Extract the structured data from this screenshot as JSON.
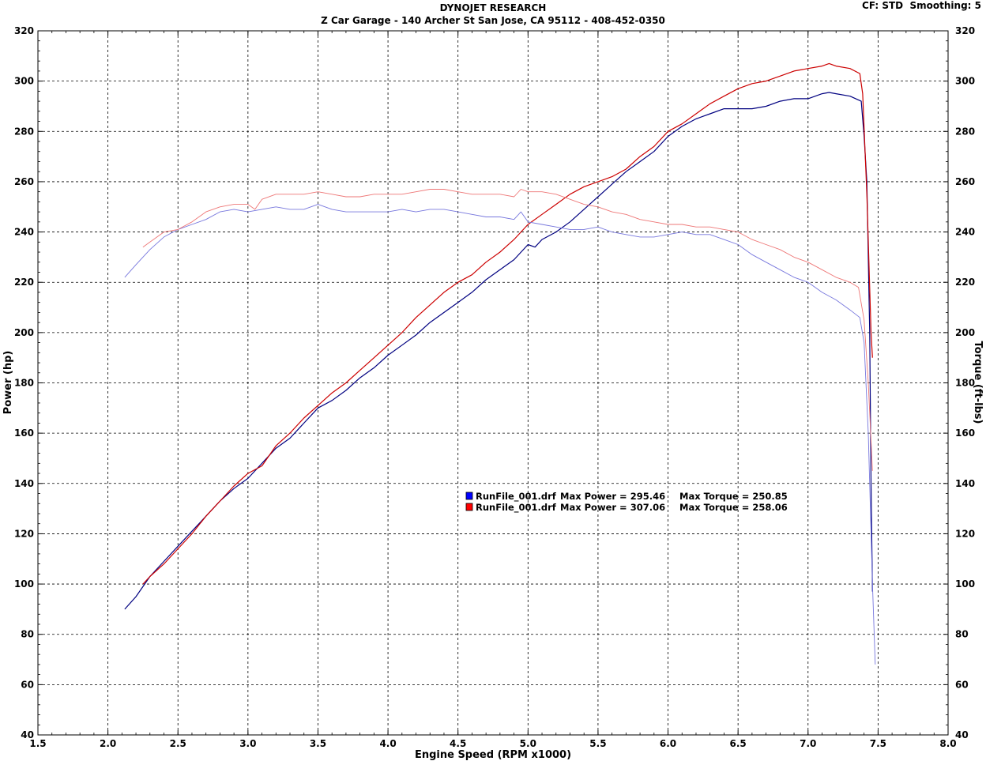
{
  "header": {
    "title": "DYNOJET RESEARCH",
    "subtitle": "Z Car Garage - 140 Archer St San Jose, CA 95112 - 408-452-0350",
    "cf_label": "CF: STD",
    "smoothing_label": "Smoothing: 5"
  },
  "chart_data": {
    "type": "line",
    "xlabel": "Engine Speed (RPM x1000)",
    "ylabel_left": "Power (hp)",
    "ylabel_right": "Torque (ft-lbs)",
    "xlim": [
      1.5,
      8.0
    ],
    "ylim": [
      40,
      320
    ],
    "x_ticks": [
      "1.5",
      "2.0",
      "2.5",
      "3.0",
      "3.5",
      "4.0",
      "4.5",
      "5.0",
      "5.5",
      "6.0",
      "6.5",
      "7.0",
      "7.5",
      "8.0"
    ],
    "y_ticks": [
      "40",
      "60",
      "80",
      "100",
      "120",
      "140",
      "160",
      "180",
      "200",
      "220",
      "240",
      "260",
      "280",
      "300",
      "320"
    ],
    "grid": true,
    "legend_placement": "center",
    "legend": [
      {
        "file": "RunFile_001.drf",
        "max_power_label": "Max Power = 295.46",
        "max_torque_label": "Max Torque = 250.85",
        "color": "#0000cc"
      },
      {
        "file": "RunFile_001.drf",
        "max_power_label": "Max Power = 307.06",
        "max_torque_label": "Max Torque = 258.06",
        "color": "#dd0000"
      }
    ],
    "series": [
      {
        "role": "power",
        "color": "#000080",
        "width": 1.2,
        "points": [
          [
            2.12,
            90
          ],
          [
            2.2,
            95
          ],
          [
            2.3,
            103
          ],
          [
            2.4,
            109
          ],
          [
            2.5,
            115
          ],
          [
            2.6,
            121
          ],
          [
            2.7,
            127
          ],
          [
            2.8,
            133
          ],
          [
            2.9,
            138
          ],
          [
            3.0,
            142
          ],
          [
            3.1,
            148
          ],
          [
            3.2,
            154
          ],
          [
            3.3,
            158
          ],
          [
            3.4,
            164
          ],
          [
            3.5,
            170
          ],
          [
            3.6,
            173
          ],
          [
            3.7,
            177
          ],
          [
            3.8,
            182
          ],
          [
            3.9,
            186
          ],
          [
            4.0,
            191
          ],
          [
            4.1,
            195
          ],
          [
            4.2,
            199
          ],
          [
            4.3,
            204
          ],
          [
            4.4,
            208
          ],
          [
            4.5,
            212
          ],
          [
            4.6,
            216
          ],
          [
            4.7,
            221
          ],
          [
            4.8,
            225
          ],
          [
            4.9,
            229
          ],
          [
            5.0,
            235
          ],
          [
            5.05,
            234
          ],
          [
            5.1,
            237
          ],
          [
            5.2,
            240
          ],
          [
            5.3,
            244
          ],
          [
            5.4,
            249
          ],
          [
            5.5,
            254
          ],
          [
            5.6,
            259
          ],
          [
            5.7,
            264
          ],
          [
            5.8,
            268
          ],
          [
            5.9,
            272
          ],
          [
            6.0,
            278
          ],
          [
            6.1,
            282
          ],
          [
            6.2,
            285
          ],
          [
            6.3,
            287
          ],
          [
            6.4,
            289
          ],
          [
            6.5,
            289
          ],
          [
            6.6,
            289
          ],
          [
            6.7,
            290
          ],
          [
            6.8,
            292
          ],
          [
            6.9,
            293
          ],
          [
            7.0,
            293
          ],
          [
            7.1,
            295
          ],
          [
            7.15,
            295.5
          ],
          [
            7.2,
            295
          ],
          [
            7.3,
            294
          ],
          [
            7.38,
            292
          ],
          [
            7.4,
            278
          ],
          [
            7.42,
            260
          ],
          [
            7.44,
            200
          ],
          [
            7.45,
            140
          ],
          [
            7.46,
            97
          ]
        ]
      },
      {
        "role": "power",
        "color": "#cc0000",
        "width": 1.2,
        "points": [
          [
            2.25,
            100
          ],
          [
            2.3,
            103
          ],
          [
            2.4,
            108
          ],
          [
            2.5,
            114
          ],
          [
            2.6,
            120
          ],
          [
            2.7,
            127
          ],
          [
            2.8,
            133
          ],
          [
            2.9,
            139
          ],
          [
            3.0,
            144
          ],
          [
            3.1,
            147
          ],
          [
            3.2,
            155
          ],
          [
            3.3,
            160
          ],
          [
            3.4,
            166
          ],
          [
            3.5,
            171
          ],
          [
            3.6,
            176
          ],
          [
            3.7,
            180
          ],
          [
            3.8,
            185
          ],
          [
            3.9,
            190
          ],
          [
            4.0,
            195
          ],
          [
            4.1,
            200
          ],
          [
            4.2,
            206
          ],
          [
            4.3,
            211
          ],
          [
            4.4,
            216
          ],
          [
            4.5,
            220
          ],
          [
            4.6,
            223
          ],
          [
            4.7,
            228
          ],
          [
            4.8,
            232
          ],
          [
            4.9,
            237
          ],
          [
            5.0,
            243
          ],
          [
            5.1,
            247
          ],
          [
            5.2,
            251
          ],
          [
            5.3,
            255
          ],
          [
            5.4,
            258
          ],
          [
            5.5,
            260
          ],
          [
            5.6,
            262
          ],
          [
            5.7,
            265
          ],
          [
            5.8,
            270
          ],
          [
            5.9,
            274
          ],
          [
            6.0,
            280
          ],
          [
            6.1,
            283
          ],
          [
            6.2,
            287
          ],
          [
            6.3,
            291
          ],
          [
            6.4,
            294
          ],
          [
            6.5,
            297
          ],
          [
            6.6,
            299
          ],
          [
            6.7,
            300
          ],
          [
            6.8,
            302
          ],
          [
            6.9,
            304
          ],
          [
            7.0,
            305
          ],
          [
            7.1,
            306
          ],
          [
            7.15,
            307
          ],
          [
            7.2,
            306
          ],
          [
            7.3,
            305
          ],
          [
            7.37,
            303
          ],
          [
            7.39,
            295
          ],
          [
            7.42,
            255
          ],
          [
            7.45,
            200
          ],
          [
            7.46,
            190
          ]
        ]
      },
      {
        "role": "torque",
        "color": "#7777dd",
        "width": 0.9,
        "points": [
          [
            2.12,
            222
          ],
          [
            2.2,
            227
          ],
          [
            2.3,
            233
          ],
          [
            2.4,
            238
          ],
          [
            2.5,
            241
          ],
          [
            2.6,
            243
          ],
          [
            2.7,
            245
          ],
          [
            2.8,
            248
          ],
          [
            2.9,
            249
          ],
          [
            3.0,
            248
          ],
          [
            3.1,
            249
          ],
          [
            3.2,
            250
          ],
          [
            3.3,
            249
          ],
          [
            3.4,
            249
          ],
          [
            3.5,
            251
          ],
          [
            3.6,
            249
          ],
          [
            3.7,
            248
          ],
          [
            3.8,
            248
          ],
          [
            3.9,
            248
          ],
          [
            4.0,
            248
          ],
          [
            4.1,
            249
          ],
          [
            4.2,
            248
          ],
          [
            4.3,
            249
          ],
          [
            4.4,
            249
          ],
          [
            4.5,
            248
          ],
          [
            4.6,
            247
          ],
          [
            4.7,
            246
          ],
          [
            4.8,
            246
          ],
          [
            4.9,
            245
          ],
          [
            4.95,
            248
          ],
          [
            5.0,
            244
          ],
          [
            5.1,
            243
          ],
          [
            5.2,
            242
          ],
          [
            5.3,
            241
          ],
          [
            5.4,
            241
          ],
          [
            5.5,
            242
          ],
          [
            5.6,
            240
          ],
          [
            5.7,
            239
          ],
          [
            5.8,
            238
          ],
          [
            5.9,
            238
          ],
          [
            6.0,
            239
          ],
          [
            6.1,
            240
          ],
          [
            6.2,
            239
          ],
          [
            6.3,
            239
          ],
          [
            6.4,
            237
          ],
          [
            6.5,
            235
          ],
          [
            6.6,
            231
          ],
          [
            6.7,
            228
          ],
          [
            6.8,
            225
          ],
          [
            6.9,
            222
          ],
          [
            7.0,
            220
          ],
          [
            7.1,
            216
          ],
          [
            7.2,
            213
          ],
          [
            7.3,
            209
          ],
          [
            7.37,
            206
          ],
          [
            7.4,
            196
          ],
          [
            7.43,
            160
          ],
          [
            7.46,
            100
          ],
          [
            7.48,
            68
          ]
        ]
      },
      {
        "role": "torque",
        "color": "#ee7777",
        "width": 0.9,
        "points": [
          [
            2.25,
            234
          ],
          [
            2.3,
            236
          ],
          [
            2.4,
            240
          ],
          [
            2.5,
            241
          ],
          [
            2.6,
            244
          ],
          [
            2.7,
            248
          ],
          [
            2.8,
            250
          ],
          [
            2.9,
            251
          ],
          [
            3.0,
            251
          ],
          [
            3.05,
            249
          ],
          [
            3.1,
            253
          ],
          [
            3.2,
            255
          ],
          [
            3.3,
            255
          ],
          [
            3.4,
            255
          ],
          [
            3.5,
            256
          ],
          [
            3.6,
            255
          ],
          [
            3.7,
            254
          ],
          [
            3.8,
            254
          ],
          [
            3.9,
            255
          ],
          [
            4.0,
            255
          ],
          [
            4.1,
            255
          ],
          [
            4.2,
            256
          ],
          [
            4.3,
            257
          ],
          [
            4.4,
            257
          ],
          [
            4.5,
            256
          ],
          [
            4.6,
            255
          ],
          [
            4.7,
            255
          ],
          [
            4.8,
            255
          ],
          [
            4.9,
            254
          ],
          [
            4.95,
            257
          ],
          [
            5.0,
            256
          ],
          [
            5.1,
            256
          ],
          [
            5.2,
            255
          ],
          [
            5.3,
            253
          ],
          [
            5.4,
            251
          ],
          [
            5.5,
            250
          ],
          [
            5.6,
            248
          ],
          [
            5.7,
            247
          ],
          [
            5.8,
            245
          ],
          [
            5.9,
            244
          ],
          [
            6.0,
            243
          ],
          [
            6.1,
            243
          ],
          [
            6.2,
            242
          ],
          [
            6.3,
            242
          ],
          [
            6.4,
            241
          ],
          [
            6.5,
            240
          ],
          [
            6.6,
            237
          ],
          [
            6.7,
            235
          ],
          [
            6.8,
            233
          ],
          [
            6.9,
            230
          ],
          [
            7.0,
            228
          ],
          [
            7.1,
            225
          ],
          [
            7.2,
            222
          ],
          [
            7.3,
            220
          ],
          [
            7.36,
            218
          ],
          [
            7.4,
            205
          ],
          [
            7.43,
            180
          ],
          [
            7.46,
            145
          ]
        ]
      }
    ]
  }
}
